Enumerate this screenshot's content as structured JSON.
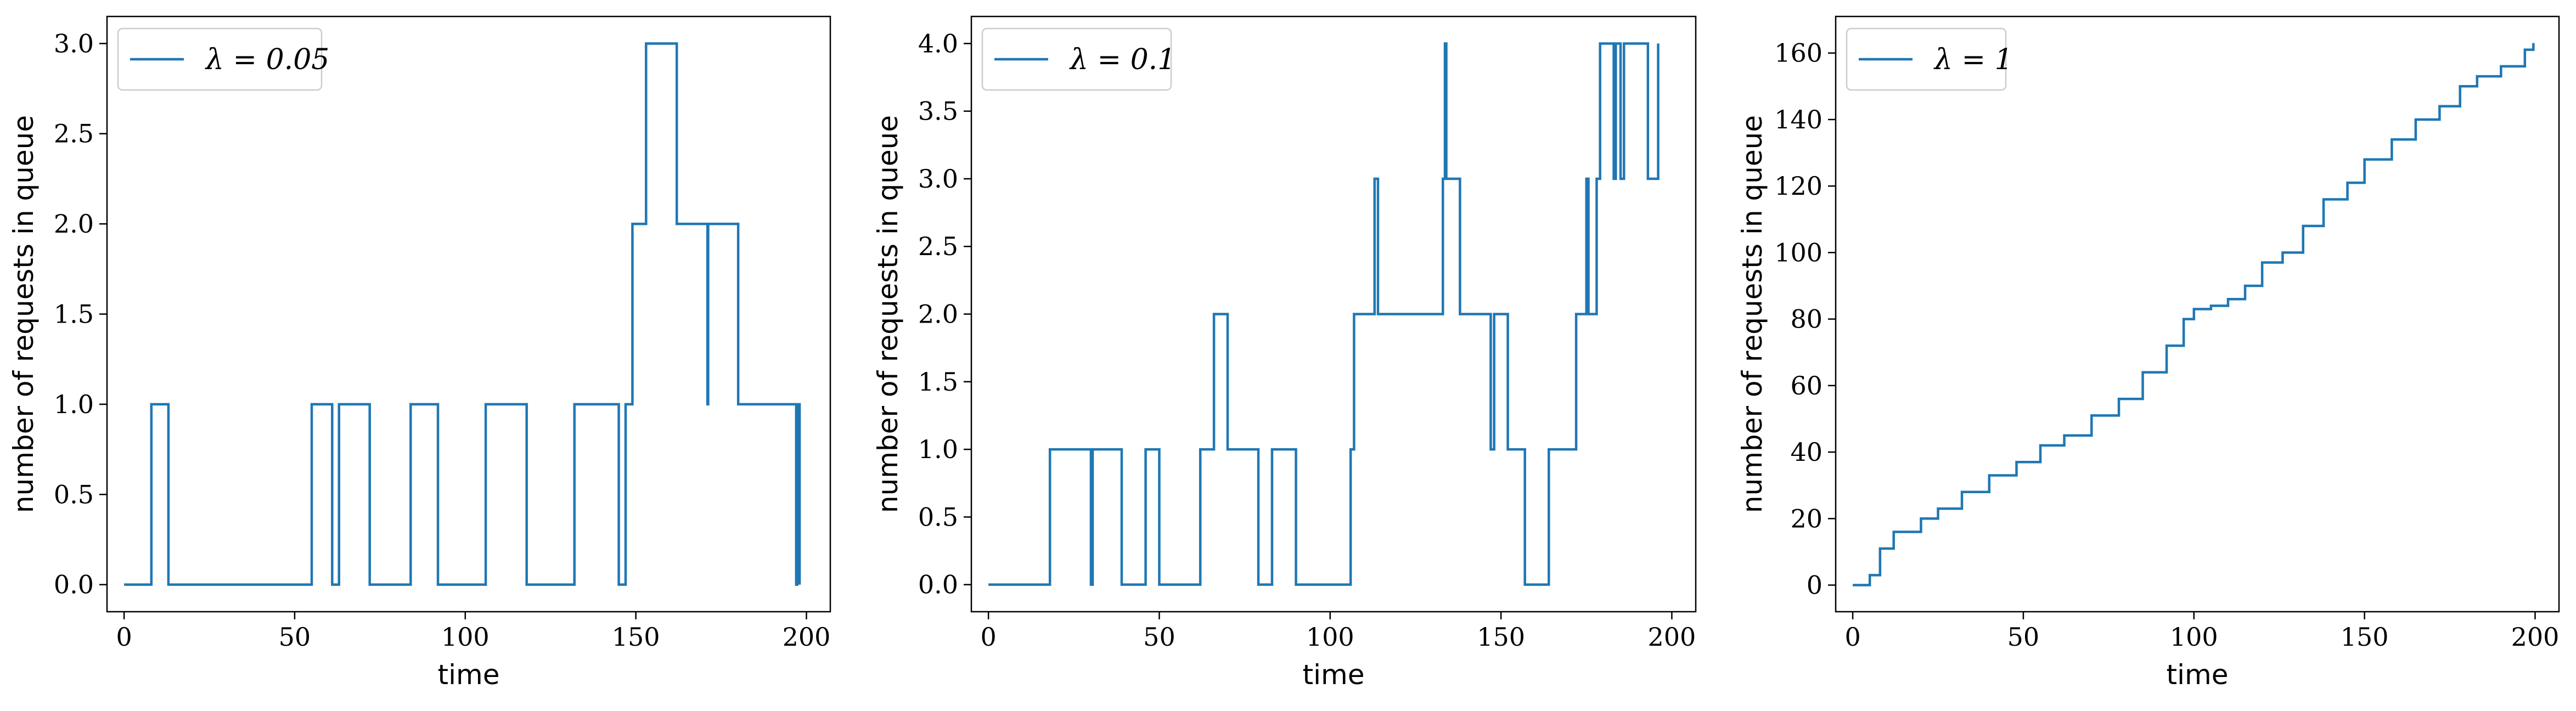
{
  "chart_data": [
    {
      "type": "line",
      "step": true,
      "xlabel": "time",
      "ylabel": "number of requests in queue",
      "xlim": [
        -5,
        207
      ],
      "ylim": [
        -0.15,
        3.15
      ],
      "xticks": [
        "0",
        "50",
        "100",
        "150",
        "200"
      ],
      "yticks": [
        "0.0",
        "0.5",
        "1.0",
        "1.5",
        "2.0",
        "2.5",
        "3.0"
      ],
      "grid": false,
      "legend_position": "top-left",
      "series": [
        {
          "name": "λ = 0.05",
          "color": "#1f77b4",
          "x": [
            0,
            8,
            13,
            55,
            61,
            63,
            72,
            84,
            92,
            106,
            118,
            132,
            145,
            147,
            149,
            153,
            162,
            171,
            171.2,
            180,
            197,
            197.3,
            198
          ],
          "y": [
            0,
            1,
            0,
            1,
            0,
            1,
            0,
            1,
            0,
            1,
            0,
            1,
            0,
            1,
            2,
            3,
            2,
            1,
            2,
            1,
            0,
            1,
            0
          ]
        }
      ]
    },
    {
      "type": "line",
      "step": true,
      "xlabel": "time",
      "ylabel": "number of requests in queue",
      "xlim": [
        -5,
        207
      ],
      "ylim": [
        -0.2,
        4.2
      ],
      "xticks": [
        "0",
        "50",
        "100",
        "150",
        "200"
      ],
      "yticks": [
        "0.0",
        "0.5",
        "1.0",
        "1.5",
        "2.0",
        "2.5",
        "3.0",
        "3.5",
        "4.0"
      ],
      "grid": false,
      "legend_position": "top-left",
      "series": [
        {
          "name": "λ = 0.1",
          "color": "#1f77b4",
          "x": [
            0,
            18,
            30,
            30.5,
            39,
            46,
            50,
            62,
            66,
            70,
            79,
            83,
            90,
            106,
            107,
            113,
            114,
            133,
            133.6,
            134,
            138,
            147,
            148,
            152,
            157,
            164,
            172,
            175,
            175.6,
            176,
            178,
            179,
            183,
            183.6,
            184,
            185,
            186,
            187,
            193,
            196
          ],
          "y": [
            0,
            1,
            0,
            1,
            0,
            1,
            0,
            1,
            2,
            1,
            0,
            1,
            0,
            1,
            2,
            3,
            2,
            3,
            4,
            3,
            2,
            1,
            2,
            1,
            0,
            1,
            2,
            3,
            2,
            2,
            3,
            4,
            3,
            4,
            4,
            3,
            4,
            4,
            3,
            4
          ]
        }
      ]
    },
    {
      "type": "line",
      "step": true,
      "xlabel": "time",
      "ylabel": "number of requests in queue",
      "xlim": [
        -5,
        207
      ],
      "ylim": [
        -8,
        171
      ],
      "xticks": [
        "0",
        "50",
        "100",
        "150",
        "200"
      ],
      "yticks": [
        "0",
        "20",
        "40",
        "60",
        "80",
        "100",
        "120",
        "140",
        "160"
      ],
      "grid": false,
      "legend_position": "top-left",
      "series": [
        {
          "name": "λ = 1",
          "color": "#1f77b4",
          "x": [
            0,
            5,
            8,
            12,
            20,
            25,
            32,
            40,
            48,
            55,
            62,
            70,
            78,
            85,
            92,
            97,
            100,
            105,
            110,
            115,
            120,
            126,
            132,
            138,
            145,
            150,
            158,
            165,
            172,
            178,
            183,
            190,
            197,
            199.5
          ],
          "y": [
            0,
            3,
            11,
            16,
            20,
            23,
            28,
            33,
            37,
            42,
            45,
            51,
            56,
            64,
            72,
            80,
            83,
            84,
            86,
            90,
            97,
            100,
            108,
            116,
            121,
            128,
            134,
            140,
            144,
            150,
            153,
            156,
            161,
            163
          ]
        }
      ]
    }
  ]
}
